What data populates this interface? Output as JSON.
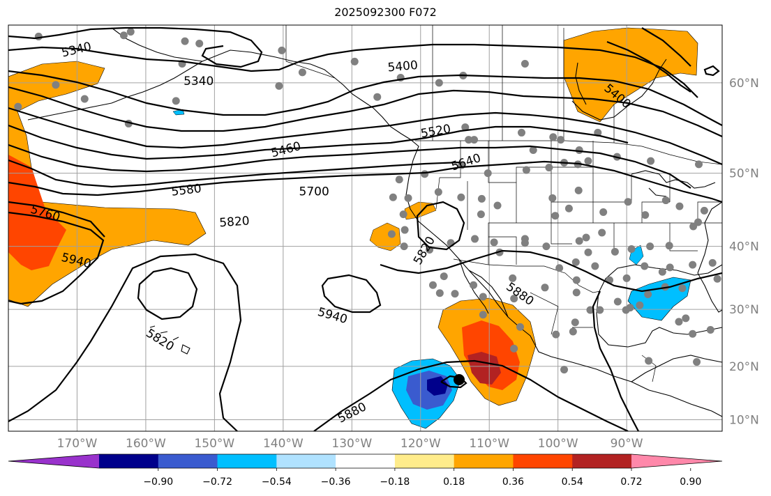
{
  "title": "2025092300 F072",
  "lat_ticks": [
    {
      "value": 60,
      "label": "60°N"
    },
    {
      "value": 50,
      "label": "50°N"
    },
    {
      "value": 40,
      "label": "40°N"
    },
    {
      "value": 30,
      "label": "30°N"
    },
    {
      "value": 20,
      "label": "20°N"
    },
    {
      "value": 10,
      "label": "10°N"
    }
  ],
  "lon_ticks": [
    {
      "value": -170,
      "label": "170°W"
    },
    {
      "value": -160,
      "label": "160°W"
    },
    {
      "value": -150,
      "label": "150°W"
    },
    {
      "value": -140,
      "label": "140°W"
    },
    {
      "value": -130,
      "label": "130°W"
    },
    {
      "value": -120,
      "label": "120°W"
    },
    {
      "value": -110,
      "label": "110°W"
    },
    {
      "value": -100,
      "label": "100°W"
    },
    {
      "value": -90,
      "label": "90°W"
    }
  ],
  "contour_labels": [
    {
      "text": "5340",
      "lon": -170.1,
      "lat": 63.1,
      "rot": -14
    },
    {
      "text": "5340",
      "lon": -152.3,
      "lat": 60.2,
      "rot": 0
    },
    {
      "text": "5400",
      "lon": -122.6,
      "lat": 61.6,
      "rot": -5
    },
    {
      "text": "5400",
      "lon": -91.3,
      "lat": 58.7,
      "rot": 40
    },
    {
      "text": "5460",
      "lon": -139.6,
      "lat": 52.9,
      "rot": -15
    },
    {
      "text": "5520",
      "lon": -117.8,
      "lat": 55.0,
      "rot": -10
    },
    {
      "text": "5580",
      "lon": -154.1,
      "lat": 47.9,
      "rot": -7
    },
    {
      "text": "5640",
      "lon": -113.4,
      "lat": 51.4,
      "rot": -18
    },
    {
      "text": "5700",
      "lon": -135.5,
      "lat": 47.7,
      "rot": 0
    },
    {
      "text": "5760",
      "lon": -174.6,
      "lat": 44.8,
      "rot": 17
    },
    {
      "text": "5820",
      "lon": -147.1,
      "lat": 43.6,
      "rot": -4
    },
    {
      "text": "5820",
      "lon": -119.5,
      "lat": 39.4,
      "rot": -60
    },
    {
      "text": "5820",
      "lon": -157.9,
      "lat": 24.8,
      "rot": 32
    },
    {
      "text": "5940",
      "lon": -170.1,
      "lat": 37.9,
      "rot": 14
    },
    {
      "text": "5940",
      "lon": -132.8,
      "lat": 29.0,
      "rot": 16
    },
    {
      "text": "5880",
      "lon": -105.5,
      "lat": 32.6,
      "rot": 35
    },
    {
      "text": "5880",
      "lon": -130.0,
      "lat": 11.4,
      "rot": -27
    }
  ],
  "colorbar": {
    "labels": [
      "−0.90",
      "−0.72",
      "−0.54",
      "−0.36",
      "−0.18",
      "0.18",
      "0.36",
      "0.54",
      "0.72",
      "0.90"
    ],
    "colors": [
      "#9932cc",
      "#00008b",
      "#3a5bcf",
      "#00bfff",
      "#b0e2ff",
      "#ffffff",
      "#ffec8b",
      "#ffa500",
      "#ff4500",
      "#b22222",
      "#ff88aa"
    ]
  }
}
